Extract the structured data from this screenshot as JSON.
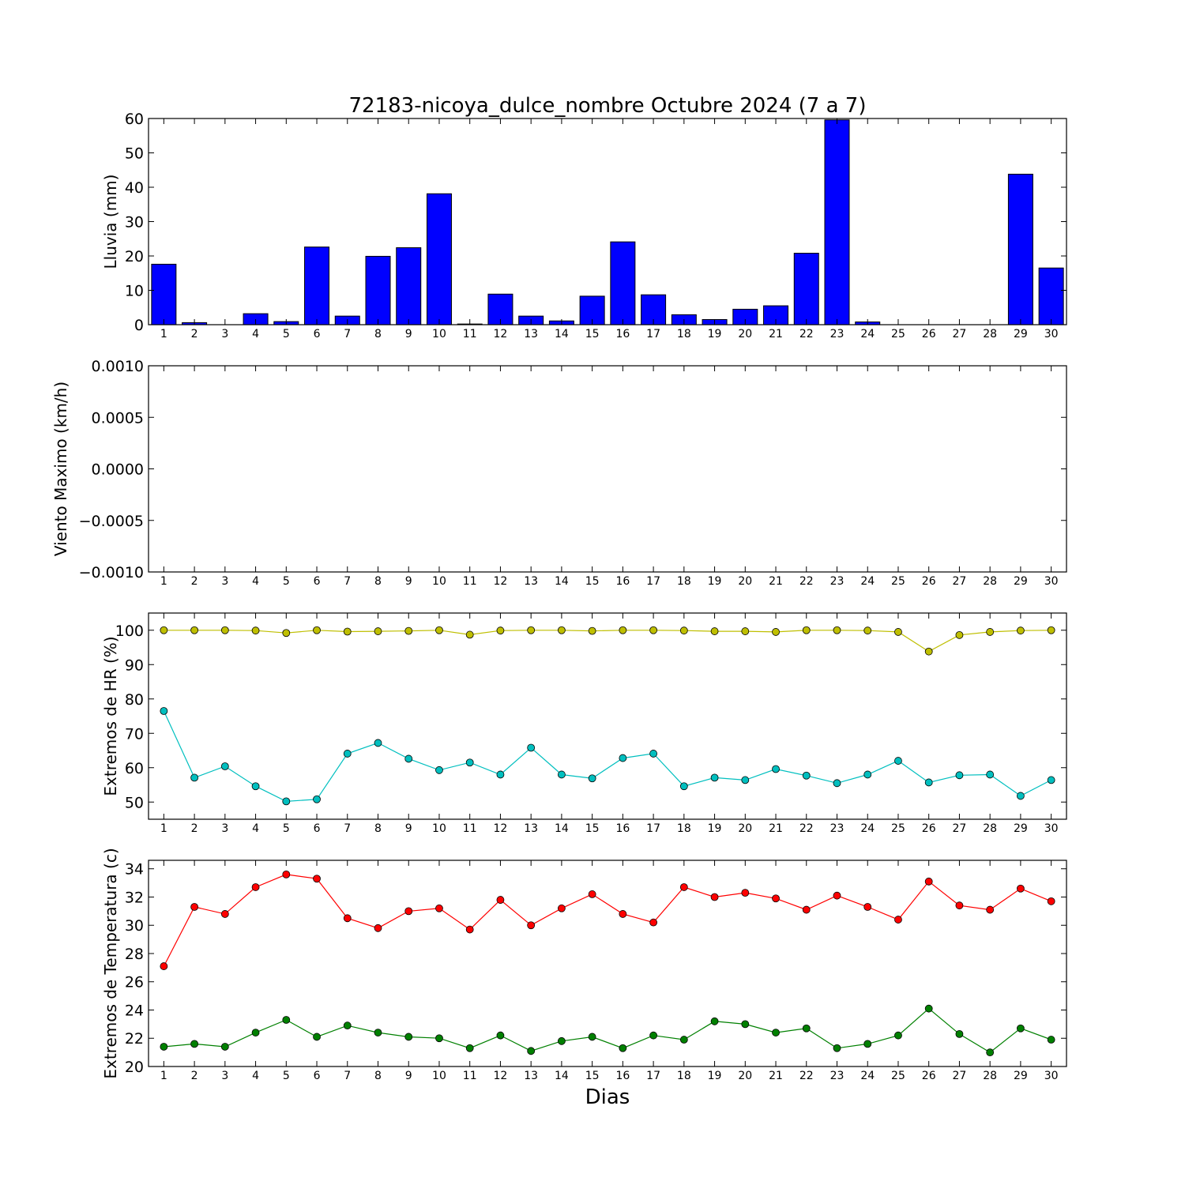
{
  "title": "72183-nicoya_dulce_nombre Octubre 2024  (7 a 7)",
  "xlabel": "Dias",
  "days": [
    "1",
    "2",
    "3",
    "4",
    "5",
    "6",
    "7",
    "8",
    "9",
    "10",
    "11",
    "12",
    "13",
    "14",
    "15",
    "16",
    "17",
    "18",
    "19",
    "20",
    "21",
    "22",
    "23",
    "24",
    "25",
    "26",
    "27",
    "28",
    "29",
    "30"
  ],
  "chart_data": [
    {
      "type": "bar",
      "title": "72183-nicoya_dulce_nombre Octubre 2024  (7 a 7)",
      "xlabel": "",
      "ylabel": "Lluvia (mm)",
      "ylim": [
        0,
        60
      ],
      "yticks": [
        "0",
        "10",
        "20",
        "30",
        "40",
        "50",
        "60"
      ],
      "categories": [
        "1",
        "2",
        "3",
        "4",
        "5",
        "6",
        "7",
        "8",
        "9",
        "10",
        "11",
        "12",
        "13",
        "14",
        "15",
        "16",
        "17",
        "18",
        "19",
        "20",
        "21",
        "22",
        "23",
        "24",
        "25",
        "26",
        "27",
        "28",
        "29",
        "30"
      ],
      "series": [
        {
          "color": "#0000ff",
          "values": [
            17.6,
            0.6,
            0.0,
            3.2,
            0.9,
            22.6,
            2.5,
            19.9,
            22.4,
            38.1,
            0.2,
            8.9,
            2.5,
            1.1,
            8.3,
            24.1,
            8.7,
            2.9,
            1.5,
            4.5,
            5.5,
            20.8,
            59.6,
            0.8,
            0.0,
            0.0,
            0.0,
            0.0,
            43.8,
            16.5
          ]
        }
      ],
      "grid": false
    },
    {
      "type": "line",
      "xlabel": "",
      "ylabel": "Viento Maximo (km/h)",
      "ylim": [
        -0.001,
        0.001
      ],
      "yticks": [
        "−0.0010",
        "−0.0005",
        "0.0000",
        "0.0005",
        "0.0010"
      ],
      "categories": [
        "1",
        "2",
        "3",
        "4",
        "5",
        "6",
        "7",
        "8",
        "9",
        "10",
        "11",
        "12",
        "13",
        "14",
        "15",
        "16",
        "17",
        "18",
        "19",
        "20",
        "21",
        "22",
        "23",
        "24",
        "25",
        "26",
        "27",
        "28",
        "29",
        "30"
      ],
      "series": [],
      "grid": false
    },
    {
      "type": "line",
      "xlabel": "",
      "ylabel": "Extremos de HR (%)",
      "ylim": [
        45,
        105
      ],
      "yticks": [
        "50",
        "60",
        "70",
        "80",
        "90",
        "100"
      ],
      "categories": [
        "1",
        "2",
        "3",
        "4",
        "5",
        "6",
        "7",
        "8",
        "9",
        "10",
        "11",
        "12",
        "13",
        "14",
        "15",
        "16",
        "17",
        "18",
        "19",
        "20",
        "21",
        "22",
        "23",
        "24",
        "25",
        "26",
        "27",
        "28",
        "29",
        "30"
      ],
      "series": [
        {
          "color": "#bfbf00",
          "values": [
            100,
            100,
            100,
            99.9,
            99.2,
            100,
            99.6,
            99.7,
            99.8,
            100,
            98.7,
            99.9,
            100,
            100,
            99.8,
            100,
            100,
            99.9,
            99.7,
            99.7,
            99.5,
            100,
            100,
            99.9,
            99.5,
            93.8,
            98.6,
            99.5,
            99.9,
            100
          ]
        },
        {
          "color": "#00bfbf",
          "values": [
            76.5,
            57.1,
            60.4,
            54.6,
            50.2,
            50.8,
            64.1,
            67.2,
            62.6,
            59.3,
            61.5,
            58.0,
            65.8,
            58.0,
            56.9,
            62.8,
            64.1,
            54.6,
            57.1,
            56.4,
            59.6,
            57.7,
            55.5,
            58.0,
            62.0,
            55.7,
            57.8,
            58.0,
            51.8,
            56.4
          ]
        }
      ],
      "grid": false
    },
    {
      "type": "line",
      "xlabel": "Dias",
      "ylabel": "Extremos de Temperatura (c)",
      "ylim": [
        20,
        34.6
      ],
      "yticks": [
        "20",
        "22",
        "24",
        "26",
        "28",
        "30",
        "32",
        "34"
      ],
      "categories": [
        "1",
        "2",
        "3",
        "4",
        "5",
        "6",
        "7",
        "8",
        "9",
        "10",
        "11",
        "12",
        "13",
        "14",
        "15",
        "16",
        "17",
        "18",
        "19",
        "20",
        "21",
        "22",
        "23",
        "24",
        "25",
        "26",
        "27",
        "28",
        "29",
        "30"
      ],
      "series": [
        {
          "color": "#ff0000",
          "values": [
            27.1,
            31.3,
            30.8,
            32.7,
            33.6,
            33.3,
            30.5,
            29.8,
            31.0,
            31.2,
            29.7,
            31.8,
            30.0,
            31.2,
            32.2,
            30.8,
            30.2,
            32.7,
            32.0,
            32.3,
            31.9,
            31.1,
            32.1,
            31.3,
            30.4,
            33.1,
            31.4,
            31.1,
            32.6,
            31.7
          ]
        },
        {
          "color": "#008000",
          "values": [
            21.4,
            21.6,
            21.4,
            22.4,
            23.3,
            22.1,
            22.9,
            22.4,
            22.1,
            22.0,
            21.3,
            22.2,
            21.1,
            21.8,
            22.1,
            21.3,
            22.2,
            21.9,
            23.2,
            23.0,
            22.4,
            22.7,
            21.3,
            21.6,
            22.2,
            24.1,
            22.3,
            21.0,
            22.7,
            21.9
          ]
        }
      ],
      "grid": false
    }
  ]
}
